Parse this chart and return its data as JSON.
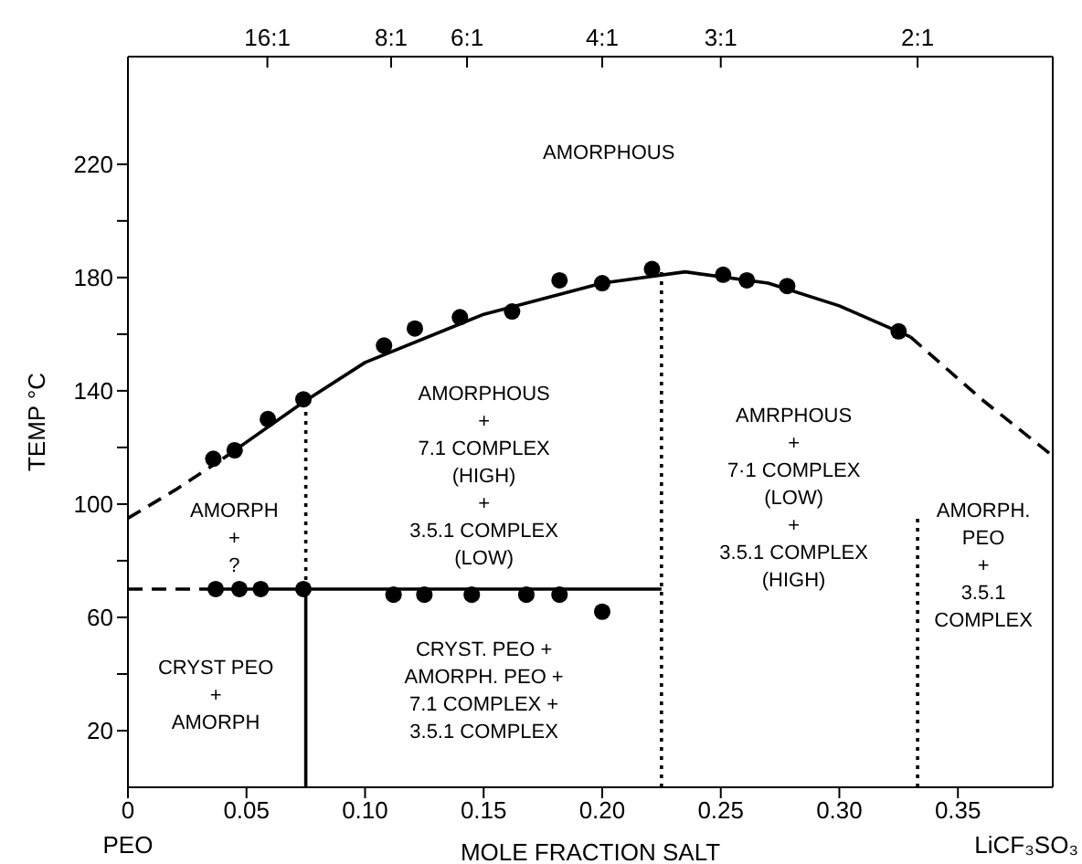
{
  "chart_data": {
    "type": "line",
    "xlabel": "MOLE FRACTION SALT",
    "ylabel": "TEMP °C",
    "xlim": [
      0,
      0.39
    ],
    "xticks": [
      0,
      {
        "value": 0.05,
        "label": "0.05"
      },
      {
        "value": 0.1,
        "label": "0.10"
      },
      {
        "value": 0.15,
        "label": "0.15"
      },
      {
        "value": 0.2,
        "label": "0.20"
      },
      {
        "value": 0.25,
        "label": "0.25"
      },
      {
        "value": 0.3,
        "label": "0.30"
      },
      {
        "value": 0.35,
        "label": "0.35"
      }
    ],
    "ylim": [
      0,
      258
    ],
    "yticks": [
      20,
      {
        "value": 40,
        "label": null
      },
      60,
      {
        "value": 80,
        "label": null
      },
      100,
      {
        "value": 120,
        "label": null
      },
      140,
      {
        "value": 160,
        "label": null
      },
      180,
      {
        "value": 200,
        "label": null
      },
      220
    ],
    "grid": false,
    "series": [
      {
        "type": "scatter",
        "marker": "circle",
        "color": "#000000",
        "x": [
          0.036,
          0.045,
          0.059,
          0.074,
          0.108,
          0.121,
          0.14,
          0.162,
          0.182,
          0.2,
          0.221,
          0.251,
          0.261,
          0.278,
          0.325
        ],
        "values": [
          116,
          119,
          130,
          137,
          156,
          162,
          166,
          168,
          179,
          178,
          183,
          181,
          179,
          177,
          161
        ]
      },
      {
        "type": "scatter",
        "marker": "circle",
        "color": "#000000",
        "x": [
          0.037,
          0.047,
          0.056,
          0.074,
          0.112,
          0.125,
          0.145,
          0.168,
          0.182,
          0.2
        ],
        "values": [
          70,
          70,
          70,
          70,
          68,
          68,
          68,
          68,
          68,
          62
        ]
      },
      {
        "marker": "none",
        "line_style": "dashed",
        "color": "#000000",
        "x": [
          0,
          0.02,
          0.04
        ],
        "values": [
          95,
          105,
          116
        ]
      },
      {
        "marker": "none",
        "line_style": "solid",
        "color": "#000000",
        "x": [
          0.04,
          0.074,
          0.1,
          0.15,
          0.2,
          0.235,
          0.27,
          0.3,
          0.33
        ],
        "values": [
          116,
          136,
          150,
          167,
          178,
          182,
          178,
          170,
          159
        ]
      },
      {
        "marker": "none",
        "line_style": "dashed",
        "color": "#000000",
        "x": [
          0.33,
          0.36,
          0.39
        ],
        "values": [
          159,
          137,
          117
        ]
      },
      {
        "marker": "none",
        "line_style": "dashed",
        "color": "#000000",
        "x": [
          0,
          0.037
        ],
        "values": [
          70,
          70
        ]
      },
      {
        "marker": "none",
        "line_style": "solid",
        "color": "#000000",
        "x": [
          0.037,
          0.225
        ],
        "values": [
          70,
          70
        ]
      },
      {
        "marker": "none",
        "line_style": "solid",
        "color": "#000000",
        "x": [
          0.075,
          0.075
        ],
        "values": [
          0,
          70
        ]
      },
      {
        "marker": "none",
        "line_style": "dotted",
        "color": "#000000",
        "x": [
          0.075,
          0.075
        ],
        "values": [
          70,
          136
        ]
      },
      {
        "marker": "none",
        "line_style": "dotted",
        "color": "#000000",
        "x": [
          0.225,
          0.225
        ],
        "values": [
          0,
          183
        ]
      },
      {
        "marker": "none",
        "line_style": "dotted",
        "color": "#000000",
        "x": [
          0.333,
          0.333
        ],
        "values": [
          0,
          96
        ]
      }
    ],
    "annotations": [
      "AMORPHOUS",
      "AMORPH\n+\n?",
      "CRYST PEO\n+\nAMORPH",
      "AMORPHOUS\n+\n7.1 COMPLEX\n(HIGH)\n+\n3.5.1 COMPLEX\n(LOW)",
      "AMRPHOUS\n+\n7·1 COMPLEX\n(LOW)\n+\n3.5.1 COMPLEX\n(HIGH)",
      "AMORPH.\nPEO\n+\n3.5.1\nCOMPLEX",
      "CRYST. PEO +\nAMORPH. PEO +\n7.1 COMPLEX +\n3.5.1 COMPLEX",
      "PEO",
      "LiCF₃SO₃",
      {
        "text": "16:1",
        "x": 0.0588
      },
      {
        "text": "8:1",
        "x": 0.111
      },
      {
        "text": "6:1",
        "x": 0.143
      },
      {
        "text": "4:1",
        "x": 0.2
      },
      {
        "text": "3:1",
        "x": 0.25
      },
      {
        "text": "2:1",
        "x": 0.333
      }
    ]
  }
}
